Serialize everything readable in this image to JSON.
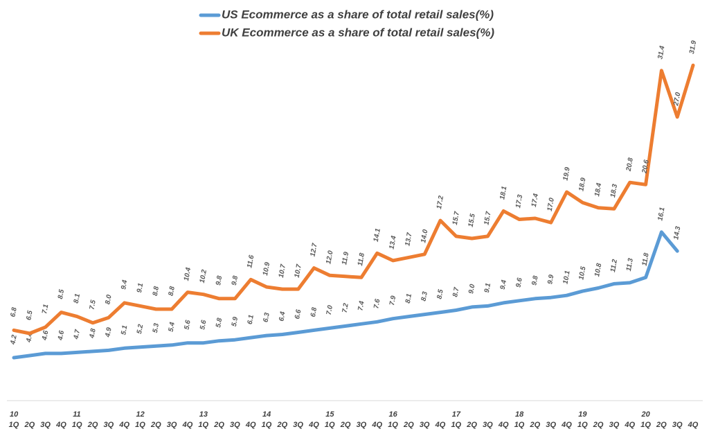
{
  "chart_data": {
    "type": "line",
    "groups": [
      "10",
      "11",
      "12",
      "13",
      "14",
      "15",
      "16",
      "17",
      "18",
      "19",
      "20"
    ],
    "categories": [
      "1Q",
      "2Q",
      "3Q",
      "4Q",
      "1Q",
      "2Q",
      "3Q",
      "4Q",
      "1Q",
      "2Q",
      "3Q",
      "4Q",
      "1Q",
      "2Q",
      "3Q",
      "4Q",
      "1Q",
      "2Q",
      "3Q",
      "4Q",
      "1Q",
      "2Q",
      "3Q",
      "4Q",
      "1Q",
      "2Q",
      "3Q",
      "4Q",
      "1Q",
      "2Q",
      "3Q",
      "4Q",
      "1Q",
      "2Q",
      "3Q",
      "4Q",
      "1Q",
      "2Q",
      "3Q",
      "4Q",
      "1Q",
      "2Q",
      "3Q",
      "4Q"
    ],
    "series": [
      {
        "name": "US Ecommerce as a share of total retail sales(%)",
        "color": "#5b9bd5",
        "values": [
          4.2,
          4.4,
          4.6,
          4.6,
          4.7,
          4.8,
          4.9,
          5.1,
          5.2,
          5.3,
          5.4,
          5.6,
          5.6,
          5.8,
          5.9,
          6.1,
          6.3,
          6.4,
          6.6,
          6.8,
          7.0,
          7.2,
          7.4,
          7.6,
          7.9,
          8.1,
          8.3,
          8.5,
          8.7,
          9.0,
          9.1,
          9.4,
          9.6,
          9.8,
          9.9,
          10.1,
          10.5,
          10.8,
          11.2,
          11.3,
          11.8,
          16.1,
          14.3,
          null
        ],
        "value_labels": [
          "4.2",
          "4.4",
          "4.6",
          "4.6",
          "4.7",
          "4.8",
          "4.9",
          "5.1",
          "5.2",
          "5.3",
          "5.4",
          "5.6",
          "5.6",
          "5.8",
          "5.9",
          "6.1",
          "6.3",
          "6.4",
          "6.6",
          "6.8",
          "7.0",
          "7.2",
          "7.4",
          "7.6",
          "7.9",
          "8.1",
          "8.3",
          "8.5",
          "8.7",
          "9.0",
          "9.1",
          "9.4",
          "9.6",
          "9.8",
          "9.9",
          "10.1",
          "10.5",
          "10.8",
          "11.2",
          "11.3",
          "11.8",
          "16.1",
          "14.3",
          null
        ]
      },
      {
        "name": "UK Ecommerce as a share of total retail sales(%)",
        "color": "#ed7d31",
        "values": [
          6.8,
          6.5,
          7.1,
          8.5,
          8.1,
          7.5,
          8.0,
          9.4,
          9.1,
          8.8,
          8.8,
          10.4,
          10.2,
          9.8,
          9.8,
          11.6,
          10.9,
          10.7,
          10.7,
          12.7,
          12.0,
          11.9,
          11.8,
          14.1,
          13.4,
          13.7,
          14.0,
          17.2,
          15.7,
          15.5,
          15.7,
          18.1,
          17.3,
          17.4,
          17.0,
          19.9,
          18.9,
          18.4,
          18.3,
          20.8,
          20.6,
          31.4,
          27.0,
          31.9
        ],
        "value_labels": [
          "6.8",
          "6.5",
          "7.1",
          "8.5",
          "8.1",
          "7.5",
          "8.0",
          "9.4",
          "9.1",
          "8.8",
          "8.8",
          "10.4",
          "10.2",
          "9.8",
          "9.8",
          "11.6",
          "10.9",
          "10.7",
          "10.7",
          "12.7",
          "12.0",
          "11.9",
          "11.8",
          "14.1",
          "13.4",
          "13.7",
          "14.0",
          "17.2",
          "15.7",
          "15.5",
          "15.7",
          "18.1",
          "17.3",
          "17.4",
          "17.0",
          "19.9",
          "18.9",
          "18.4",
          "18.3",
          "20.8",
          "20.6",
          "31.4",
          "27.0",
          "31.9"
        ]
      }
    ],
    "ylim": [
      0,
      35
    ]
  }
}
